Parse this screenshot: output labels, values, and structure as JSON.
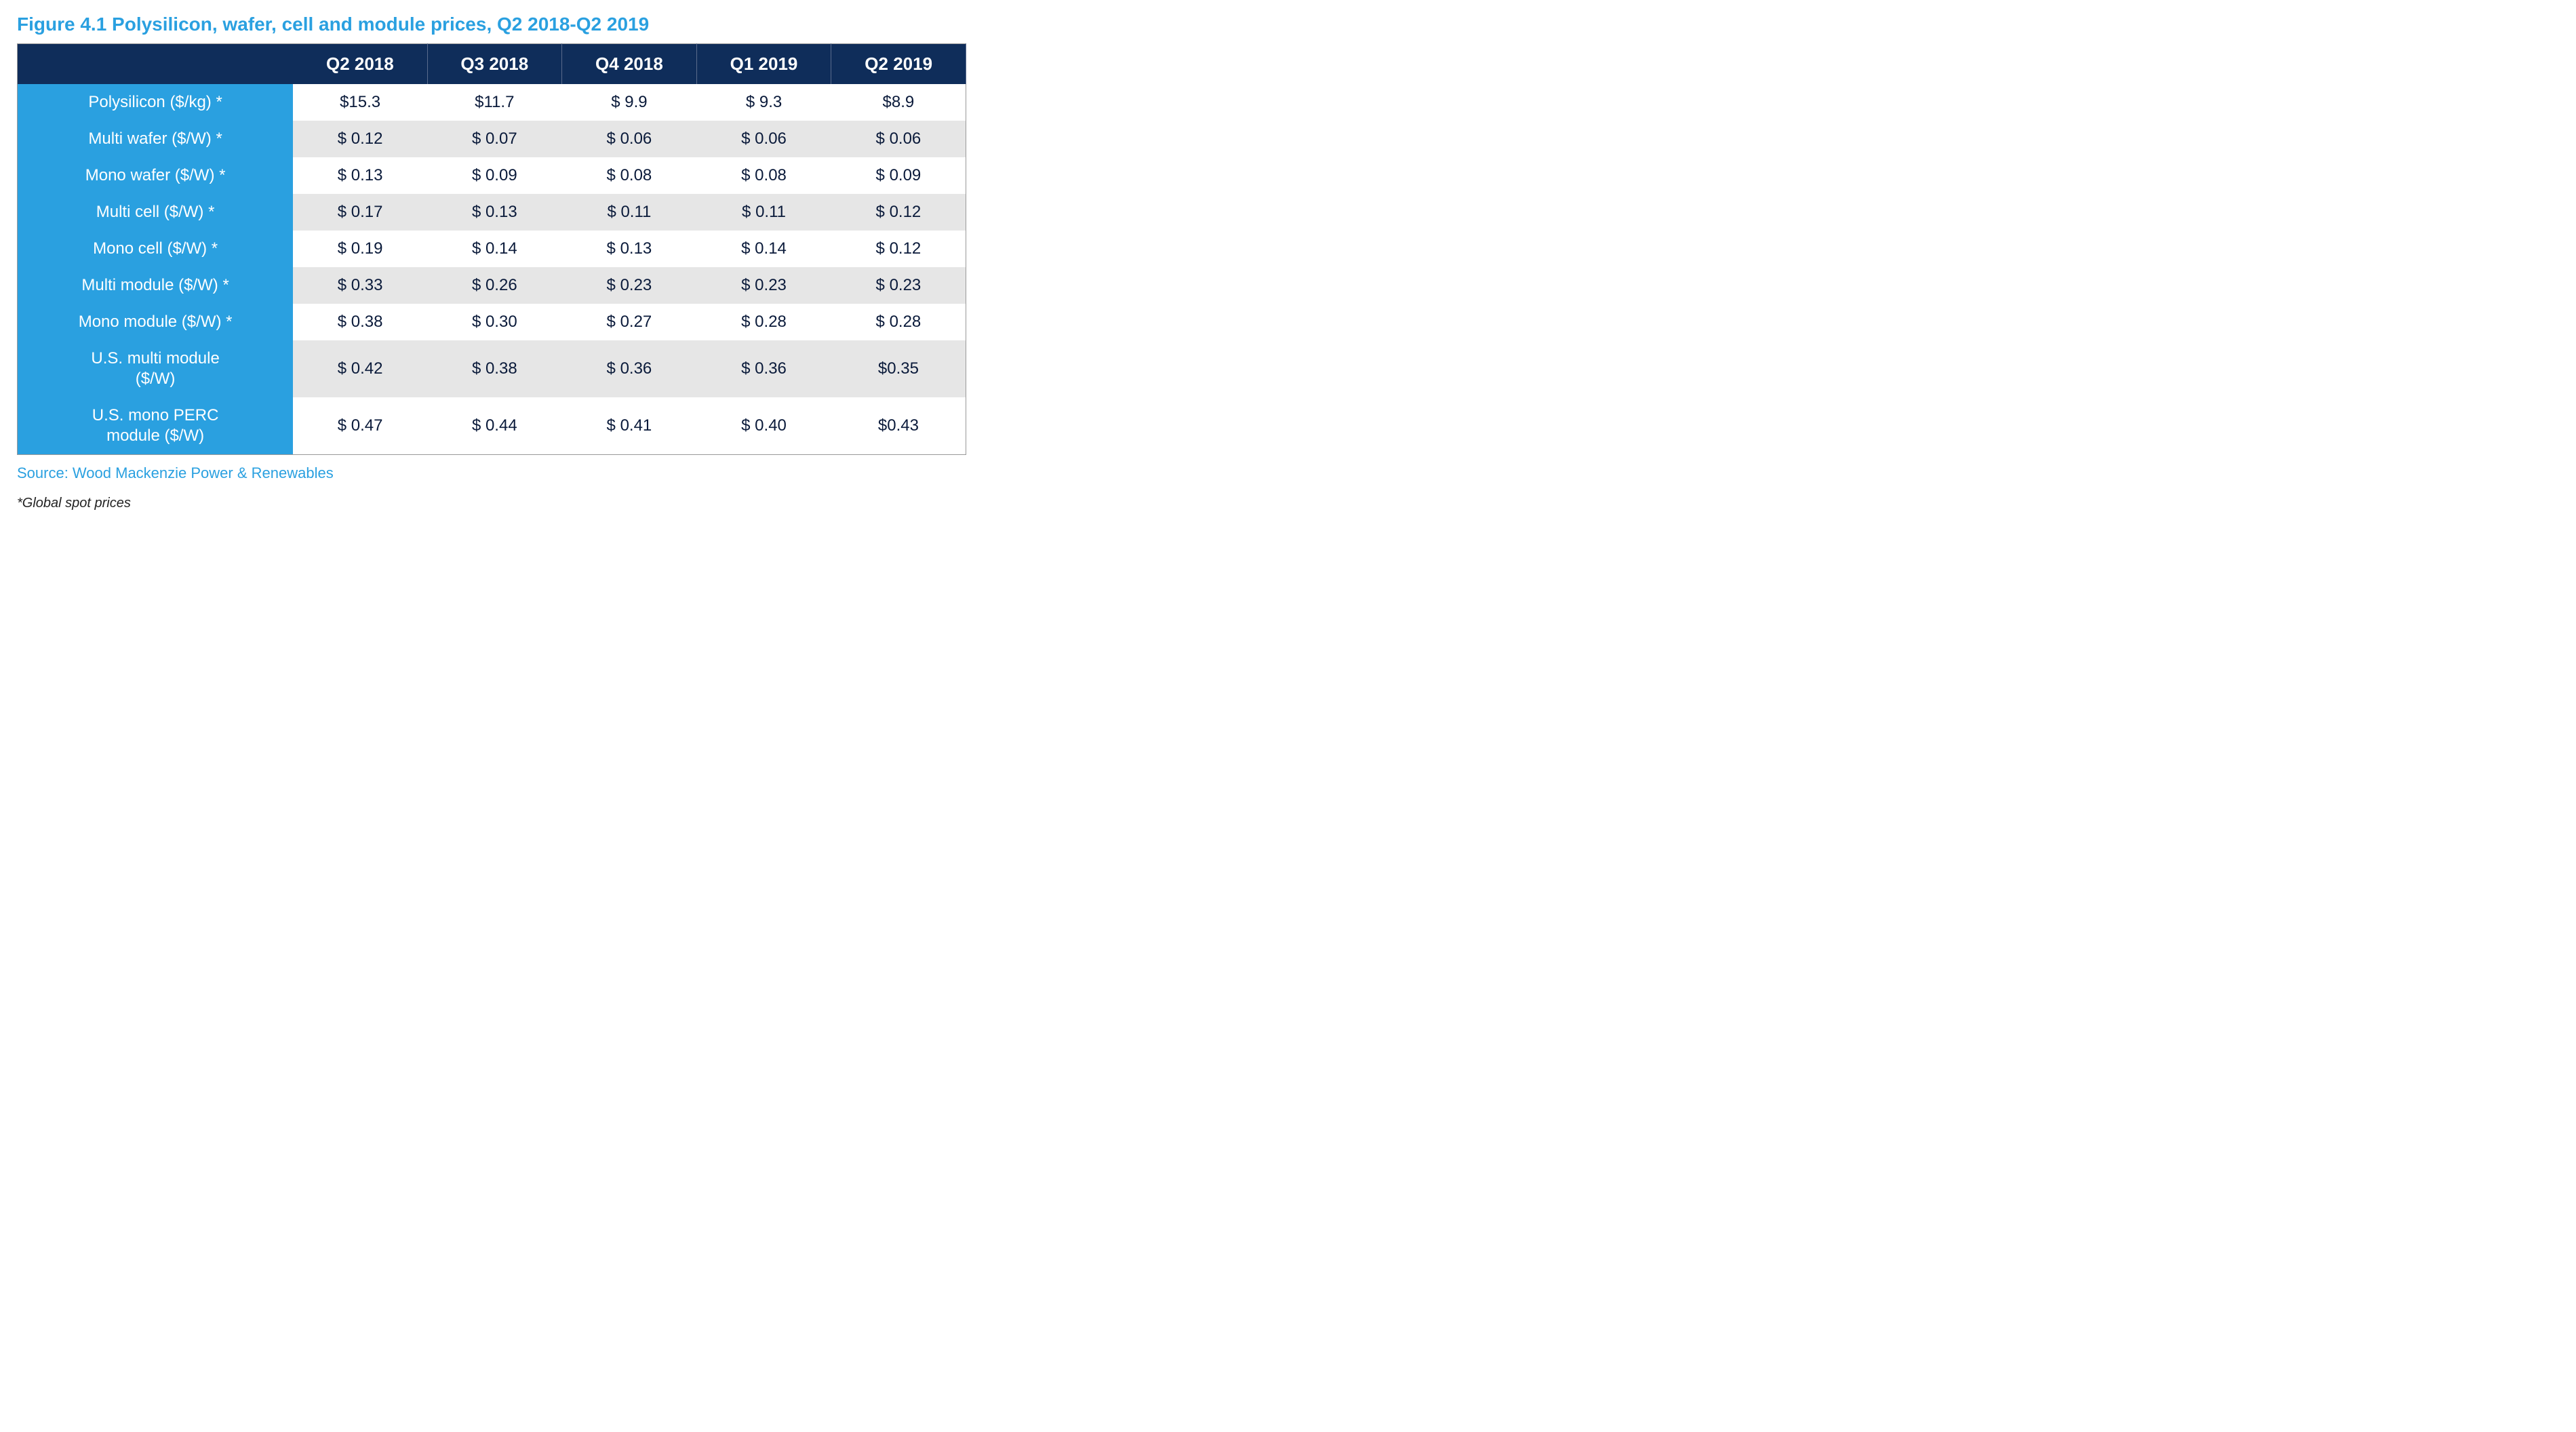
{
  "title": "Figure 4.1 Polysilicon, wafer, cell and module prices, Q2 2018-Q2 2019",
  "source": "Source: Wood Mackenzie Power & Renewables",
  "footnote": "*Global spot prices",
  "colors": {
    "title_color": "#2aa0e0",
    "header_bg": "#0f2d5a",
    "rowlabel_bg": "#2aa0e0",
    "row_even_bg": "#ffffff",
    "row_odd_bg": "#e6e6e6",
    "cell_text": "#0a1a3a",
    "source_color": "#2aa0e0"
  },
  "table": {
    "columns": [
      "Q2 2018",
      "Q3 2018",
      "Q4 2018",
      "Q1 2019",
      "Q2 2019"
    ],
    "rows": [
      {
        "label": "Polysilicon ($/kg) *",
        "values": [
          "$15.3",
          "$11.7",
          "$ 9.9",
          "$ 9.3",
          "$8.9"
        ]
      },
      {
        "label": "Multi wafer ($/W) *",
        "values": [
          "$ 0.12",
          "$ 0.07",
          "$ 0.06",
          "$ 0.06",
          "$ 0.06"
        ]
      },
      {
        "label": "Mono wafer ($/W) *",
        "values": [
          "$ 0.13",
          "$ 0.09",
          "$ 0.08",
          "$ 0.08",
          "$ 0.09"
        ]
      },
      {
        "label": "Multi cell ($/W) *",
        "values": [
          "$ 0.17",
          "$ 0.13",
          "$ 0.11",
          "$ 0.11",
          "$ 0.12"
        ]
      },
      {
        "label": "Mono cell ($/W) *",
        "values": [
          "$ 0.19",
          "$ 0.14",
          "$ 0.13",
          "$ 0.14",
          "$ 0.12"
        ]
      },
      {
        "label": "Multi module ($/W) *",
        "values": [
          "$ 0.33",
          "$ 0.26",
          "$ 0.23",
          "$ 0.23",
          "$ 0.23"
        ]
      },
      {
        "label": "Mono module ($/W) *",
        "values": [
          "$ 0.38",
          "$ 0.30",
          "$ 0.27",
          "$ 0.28",
          "$ 0.28"
        ]
      },
      {
        "label": "U.S. multi module\n($/W)",
        "values": [
          "$ 0.42",
          "$ 0.38",
          "$ 0.36",
          "$ 0.36",
          "$0.35"
        ]
      },
      {
        "label": "U.S. mono PERC\nmodule ($/W)",
        "values": [
          "$ 0.47",
          "$ 0.44",
          "$ 0.41",
          "$ 0.40",
          "$0.43"
        ]
      }
    ]
  }
}
